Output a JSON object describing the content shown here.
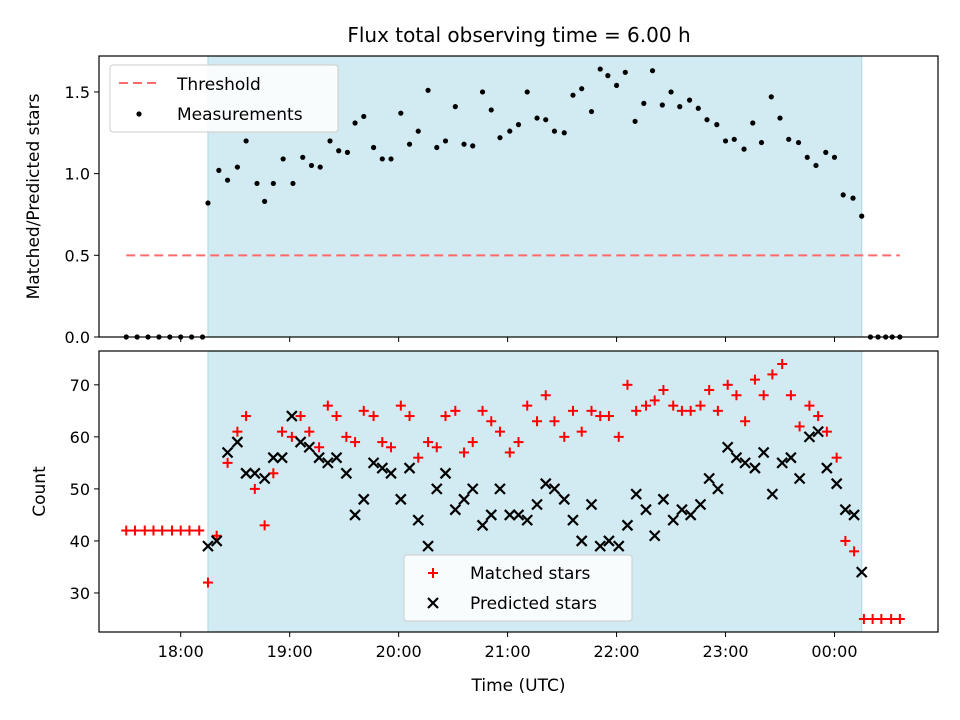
{
  "title": "Flux total observing time = 6.00 h",
  "colors": {
    "shade": "#add8e6",
    "threshold": "#ff6b6b",
    "matched": "#ff0000",
    "predicted": "#000000",
    "measurement": "#000000"
  },
  "chart_data": [
    {
      "type": "scatter",
      "ylabel": "Matched/Predicted stars",
      "ylim": [
        0.0,
        1.72
      ],
      "yticks": [
        "0.0",
        "0.5",
        "1.0",
        "1.5"
      ],
      "yticks_values": [
        0.0,
        0.5,
        1.0,
        1.5
      ],
      "shaded_region_hours": [
        18.25,
        24.25
      ],
      "legend": {
        "placement": "upper-left",
        "threshold_label": "Threshold",
        "measurements_label": "Measurements"
      },
      "threshold": {
        "value": 0.5,
        "x_range_hours": [
          17.5,
          24.6
        ]
      },
      "measurements": {
        "x_hours": [
          17.5,
          17.6,
          17.7,
          17.8,
          17.9,
          18.0,
          18.1,
          18.2,
          18.25,
          18.35,
          18.43,
          18.52,
          18.6,
          18.7,
          18.77,
          18.85,
          18.94,
          19.03,
          19.12,
          19.2,
          19.28,
          19.37,
          19.45,
          19.53,
          19.6,
          19.68,
          19.77,
          19.85,
          19.93,
          20.02,
          20.1,
          20.18,
          20.27,
          20.35,
          20.43,
          20.52,
          20.6,
          20.68,
          20.77,
          20.85,
          20.93,
          21.02,
          21.1,
          21.18,
          21.27,
          21.35,
          21.43,
          21.52,
          21.6,
          21.68,
          21.77,
          21.85,
          21.92,
          22.0,
          22.08,
          22.17,
          22.25,
          22.33,
          22.42,
          22.5,
          22.58,
          22.67,
          22.75,
          22.83,
          22.92,
          23.0,
          23.08,
          23.17,
          23.25,
          23.33,
          23.42,
          23.5,
          23.58,
          23.67,
          23.75,
          23.83,
          23.92,
          24.0,
          24.08,
          24.17,
          24.25,
          24.33,
          24.4,
          24.47,
          24.53,
          24.6
        ],
        "values": [
          0.0,
          0.0,
          0.0,
          0.0,
          0.0,
          0.0,
          0.0,
          0.0,
          0.82,
          1.02,
          0.96,
          1.04,
          1.2,
          0.94,
          0.83,
          0.94,
          1.09,
          0.94,
          1.1,
          1.05,
          1.04,
          1.2,
          1.14,
          1.13,
          1.31,
          1.35,
          1.16,
          1.09,
          1.09,
          1.37,
          1.18,
          1.26,
          1.51,
          1.16,
          1.2,
          1.41,
          1.18,
          1.17,
          1.5,
          1.39,
          1.22,
          1.26,
          1.3,
          1.5,
          1.34,
          1.33,
          1.26,
          1.25,
          1.48,
          1.52,
          1.38,
          1.64,
          1.6,
          1.54,
          1.62,
          1.32,
          1.43,
          1.63,
          1.42,
          1.5,
          1.41,
          1.45,
          1.4,
          1.33,
          1.3,
          1.2,
          1.21,
          1.15,
          1.31,
          1.19,
          1.47,
          1.34,
          1.21,
          1.19,
          1.1,
          1.05,
          1.13,
          1.1,
          0.87,
          0.85,
          0.74,
          0.0,
          0.0,
          0.0,
          0.0,
          0.0
        ]
      }
    },
    {
      "type": "scatter",
      "xlabel": "Time (UTC)",
      "ylabel": "Count",
      "ylim": [
        22.5,
        76.5
      ],
      "yticks": [
        "30",
        "40",
        "50",
        "60",
        "70"
      ],
      "yticks_values": [
        30,
        40,
        50,
        60,
        70
      ],
      "xlim_hours": [
        17.25,
        24.95
      ],
      "xticks": [
        "18:00",
        "19:00",
        "20:00",
        "21:00",
        "22:00",
        "23:00",
        "00:00"
      ],
      "xticks_hours": [
        18,
        19,
        20,
        21,
        22,
        23,
        24
      ],
      "legend": {
        "placement": "lower-center"
      },
      "series": [
        {
          "name": "Matched stars",
          "marker": "plus",
          "x_hours": [
            17.5,
            17.58,
            17.67,
            17.75,
            17.83,
            17.92,
            18.0,
            18.08,
            18.17,
            18.25,
            18.33,
            18.43,
            18.52,
            18.6,
            18.68,
            18.77,
            18.85,
            18.93,
            19.02,
            19.1,
            19.18,
            19.27,
            19.35,
            19.43,
            19.52,
            19.6,
            19.68,
            19.77,
            19.85,
            19.93,
            20.02,
            20.1,
            20.18,
            20.27,
            20.35,
            20.43,
            20.52,
            20.6,
            20.68,
            20.77,
            20.85,
            20.93,
            21.02,
            21.1,
            21.18,
            21.27,
            21.35,
            21.43,
            21.52,
            21.6,
            21.68,
            21.77,
            21.85,
            21.93,
            22.02,
            22.1,
            22.18,
            22.27,
            22.35,
            22.43,
            22.52,
            22.6,
            22.68,
            22.77,
            22.85,
            22.93,
            23.02,
            23.1,
            23.18,
            23.27,
            23.35,
            23.43,
            23.52,
            23.6,
            23.68,
            23.77,
            23.85,
            23.93,
            24.02,
            24.1,
            24.18,
            24.27,
            24.35,
            24.43,
            24.52,
            24.6
          ],
          "values": [
            42,
            42,
            42,
            42,
            42,
            42,
            42,
            42,
            42,
            32,
            41,
            55,
            61,
            64,
            50,
            43,
            53,
            61,
            60,
            64,
            61,
            58,
            66,
            64,
            60,
            59,
            65,
            64,
            59,
            58,
            66,
            64,
            56,
            59,
            58,
            64,
            65,
            57,
            59,
            65,
            63,
            61,
            57,
            59,
            66,
            63,
            68,
            63,
            60,
            65,
            61,
            65,
            64,
            64,
            60,
            70,
            65,
            66,
            67,
            69,
            66,
            65,
            65,
            66,
            69,
            65,
            70,
            68,
            63,
            71,
            68,
            72,
            74,
            68,
            62,
            66,
            64,
            61,
            56,
            40,
            38,
            25,
            25,
            25,
            25,
            25
          ]
        },
        {
          "name": "Predicted stars",
          "marker": "x",
          "x_hours": [
            18.25,
            18.33,
            18.43,
            18.52,
            18.6,
            18.68,
            18.77,
            18.85,
            18.93,
            19.02,
            19.1,
            19.18,
            19.27,
            19.35,
            19.43,
            19.52,
            19.6,
            19.68,
            19.77,
            19.85,
            19.93,
            20.02,
            20.1,
            20.18,
            20.27,
            20.35,
            20.43,
            20.52,
            20.6,
            20.68,
            20.77,
            20.85,
            20.93,
            21.02,
            21.1,
            21.18,
            21.27,
            21.35,
            21.43,
            21.52,
            21.6,
            21.68,
            21.77,
            21.85,
            21.93,
            22.02,
            22.1,
            22.18,
            22.27,
            22.35,
            22.43,
            22.52,
            22.6,
            22.68,
            22.77,
            22.85,
            22.93,
            23.02,
            23.1,
            23.18,
            23.27,
            23.35,
            23.43,
            23.52,
            23.6,
            23.68,
            23.77,
            23.85,
            23.93,
            24.02,
            24.1,
            24.18,
            24.25
          ],
          "values": [
            39,
            40,
            57,
            59,
            53,
            53,
            52,
            56,
            56,
            64,
            59,
            58,
            56,
            55,
            56,
            53,
            45,
            48,
            55,
            54,
            53,
            48,
            54,
            44,
            39,
            50,
            53,
            46,
            48,
            50,
            43,
            45,
            50,
            45,
            45,
            44,
            47,
            51,
            50,
            48,
            44,
            40,
            47,
            39,
            40,
            39,
            43,
            49,
            46,
            41,
            48,
            44,
            46,
            45,
            47,
            52,
            50,
            58,
            56,
            55,
            54,
            57,
            49,
            55,
            56,
            52,
            60,
            61,
            54,
            51,
            46,
            45,
            34
          ]
        }
      ]
    }
  ]
}
